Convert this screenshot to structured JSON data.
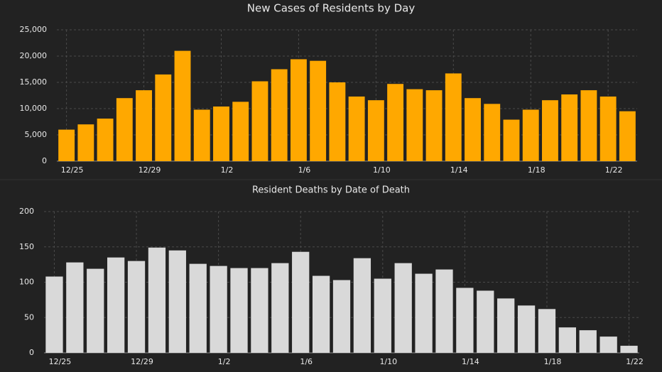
{
  "chart_data": [
    {
      "type": "bar",
      "title": "New Cases of Residents by Day",
      "categories": [
        "12/25",
        null,
        null,
        null,
        "12/29",
        null,
        null,
        null,
        "1/2",
        null,
        null,
        null,
        "1/6",
        null,
        null,
        null,
        "1/10",
        null,
        null,
        null,
        "1/14",
        null,
        null,
        null,
        "1/18",
        null,
        null,
        null,
        "1/22",
        null
      ],
      "values": [
        6000,
        7000,
        8100,
        12000,
        13500,
        16500,
        21000,
        9800,
        10400,
        11300,
        15200,
        17500,
        19400,
        19100,
        15000,
        12300,
        11600,
        14700,
        13700,
        13500,
        16700,
        12000,
        10900,
        7900,
        9800,
        11600,
        12700,
        13500,
        12300,
        9500
      ],
      "color": "#ffa800",
      "ylim": [
        0,
        25000
      ],
      "yticks": [
        0,
        {
          "value": 5000,
          "label": "5,000"
        },
        {
          "value": 10000,
          "label": "10,000"
        },
        {
          "value": 15000,
          "label": "15,000"
        },
        {
          "value": 20000,
          "label": "20,000"
        },
        {
          "value": 25000,
          "label": "25,000"
        }
      ],
      "grid": true
    },
    {
      "type": "bar",
      "title": "Resident Deaths by Date of Death",
      "categories": [
        "12/25",
        null,
        null,
        null,
        "12/29",
        null,
        null,
        null,
        "1/2",
        null,
        null,
        null,
        "1/6",
        null,
        null,
        null,
        "1/10",
        null,
        null,
        null,
        "1/14",
        null,
        null,
        null,
        "1/18",
        null,
        null,
        null,
        "1/22"
      ],
      "values": [
        108,
        128,
        119,
        135,
        130,
        149,
        145,
        126,
        123,
        120,
        120,
        127,
        143,
        109,
        103,
        134,
        105,
        127,
        112,
        118,
        92,
        88,
        77,
        67,
        62,
        36,
        32,
        23,
        10
      ],
      "color": "#d9d9d9",
      "ylim": [
        0,
        200
      ],
      "yticks": [
        0,
        50,
        100,
        150,
        200
      ],
      "grid": true
    }
  ]
}
